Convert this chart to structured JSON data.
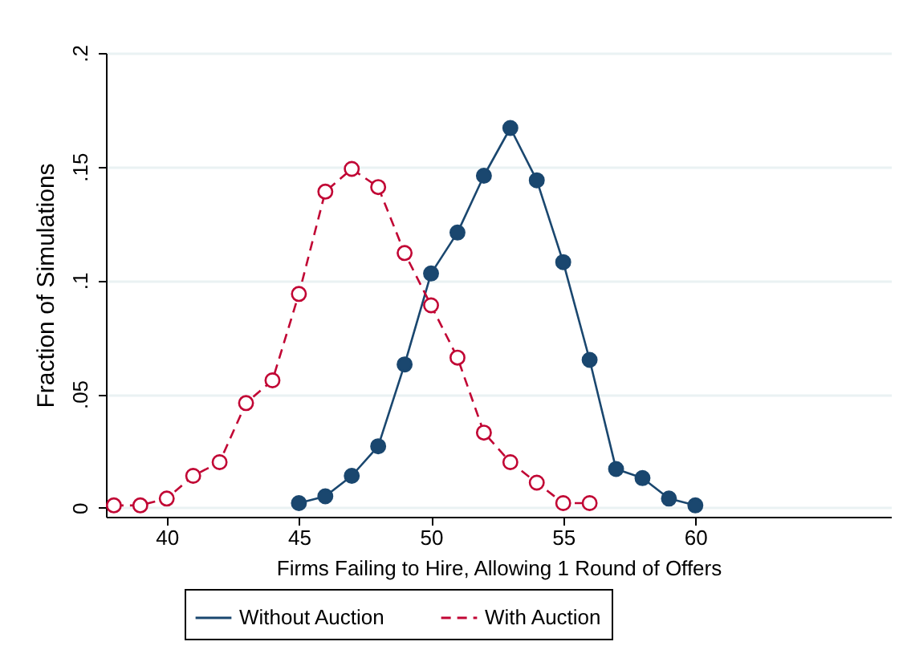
{
  "chart_data": {
    "type": "line",
    "xlabel": "Firms Failing to Hire, Allowing 1 Round of Offers",
    "ylabel": "Fraction of Simulations",
    "xlim": [
      37.7,
      67.4
    ],
    "xticks": [
      40,
      45,
      50,
      55,
      60
    ],
    "ylim": [
      -0.004,
      0.2
    ],
    "yticks": [
      {
        "value": 0,
        "label": "0"
      },
      {
        "value": 0.05,
        "label": ".05"
      },
      {
        "value": 0.1,
        "label": ".1"
      },
      {
        "value": 0.15,
        "label": ".15"
      },
      {
        "value": 0.2,
        "label": ".2"
      }
    ],
    "grid": "y",
    "legend": "bottom",
    "marker": "circle",
    "series": [
      {
        "name": "Without Auction",
        "color": "#1a476f",
        "line_style": "solid",
        "x": [
          45,
          46,
          47,
          48,
          49,
          50,
          51,
          52,
          53,
          54,
          55,
          56,
          57,
          58,
          59,
          60
        ],
        "values": [
          0.002,
          0.005,
          0.014,
          0.027,
          0.063,
          0.103,
          0.121,
          0.146,
          0.167,
          0.144,
          0.108,
          0.065,
          0.017,
          0.013,
          0.004,
          0.001
        ]
      },
      {
        "name": "With Auction",
        "color": "#c10534",
        "line_style": "dashed",
        "x": [
          38,
          39,
          40,
          41,
          42,
          43,
          44,
          45,
          46,
          47,
          48,
          49,
          50,
          51,
          52,
          53,
          54,
          55,
          56
        ],
        "values": [
          0.001,
          0.001,
          0.004,
          0.014,
          0.02,
          0.046,
          0.056,
          0.094,
          0.139,
          0.149,
          0.141,
          0.112,
          0.089,
          0.066,
          0.033,
          0.02,
          0.011,
          0.002,
          0.002
        ]
      }
    ]
  }
}
